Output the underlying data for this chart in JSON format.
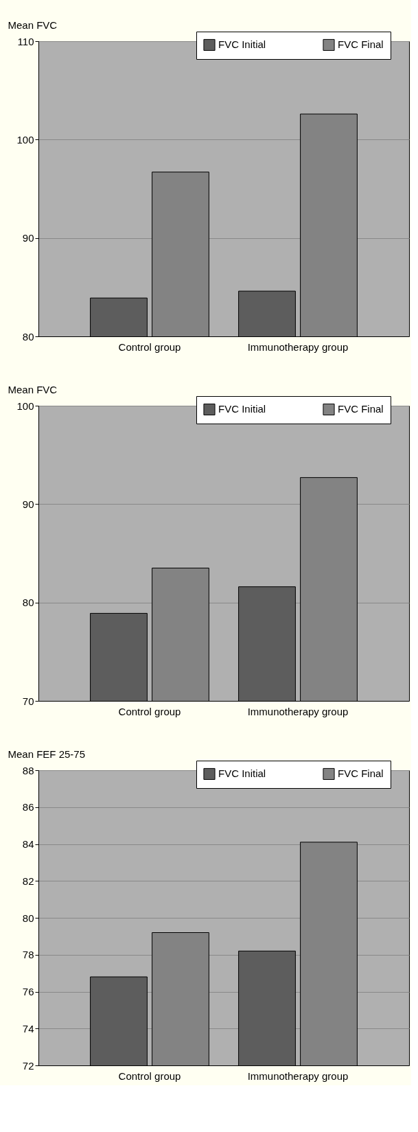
{
  "chart_data": [
    {
      "type": "bar",
      "ylabel": "Mean FVC",
      "categories": [
        "Control group",
        "Immunotherapy group"
      ],
      "series": [
        {
          "name": "FVC Initial",
          "color": "#5d5d5d",
          "values": [
            83.9,
            84.6
          ]
        },
        {
          "name": "FVC Final",
          "color": "#838383",
          "values": [
            96.7,
            102.6
          ]
        }
      ],
      "ylim": [
        80,
        110
      ],
      "yticks": [
        80,
        90,
        100,
        110
      ],
      "grid": "y",
      "legend": "top right"
    },
    {
      "type": "bar",
      "ylabel": "Mean FVC",
      "categories": [
        "Control group",
        "Immunotherapy group"
      ],
      "series": [
        {
          "name": "FVC Initial",
          "color": "#5d5d5d",
          "values": [
            78.9,
            81.6
          ]
        },
        {
          "name": "FVC Final",
          "color": "#838383",
          "values": [
            83.5,
            92.7
          ]
        }
      ],
      "ylim": [
        70,
        100
      ],
      "yticks": [
        70,
        80,
        90,
        100
      ],
      "grid": "y",
      "legend": "top right"
    },
    {
      "type": "bar",
      "ylabel": "Mean FEF 25-75",
      "categories": [
        "Control group",
        "Immunotherapy group"
      ],
      "series": [
        {
          "name": "FVC Initial",
          "color": "#5d5d5d",
          "values": [
            76.8,
            78.2
          ]
        },
        {
          "name": "FVC Final",
          "color": "#838383",
          "values": [
            79.2,
            84.1
          ]
        }
      ],
      "ylim": [
        72,
        88
      ],
      "yticks": [
        72,
        74,
        76,
        78,
        80,
        82,
        84,
        86,
        88
      ],
      "grid": "y",
      "legend": "top right"
    }
  ]
}
